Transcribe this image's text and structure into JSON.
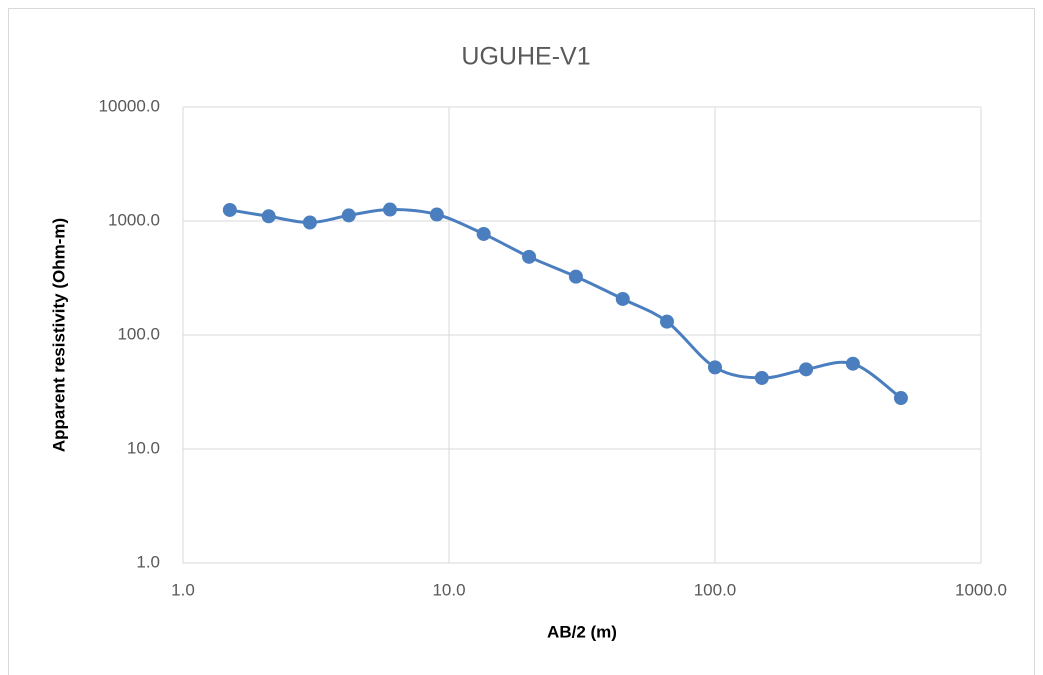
{
  "chart_data": {
    "type": "line",
    "title": "UGUHE-V1",
    "x_label": "AB/2 (m)",
    "y_label": "Apparent resistivity (Ohm-m)",
    "x": [
      1.5,
      2.1,
      3,
      4.2,
      6,
      9,
      13.5,
      20,
      30,
      45,
      66,
      100,
      150,
      220,
      330,
      500
    ],
    "series": [
      {
        "name": "UGUHE-V1",
        "color": "#4a7ebf",
        "values": [
          1250,
          1100,
          970,
          1120,
          1260,
          1140,
          770,
          485,
          325,
          207,
          131,
          52,
          42,
          50,
          56,
          28
        ]
      }
    ],
    "xscale": "log",
    "yscale": "log",
    "smooth": true,
    "grid": true,
    "xlim": [
      1,
      1000
    ],
    "xticks": [
      {
        "value": 1,
        "label": "1.0"
      },
      {
        "value": 10,
        "label": "10.0"
      },
      {
        "value": 100,
        "label": "100.0"
      },
      {
        "value": 1000,
        "label": "1000.0"
      }
    ],
    "ylim": [
      1,
      10000
    ],
    "yticks": [
      {
        "value": 1,
        "label": "1.0"
      },
      {
        "value": 10,
        "label": "10.0"
      },
      {
        "value": 100,
        "label": "100.0"
      },
      {
        "value": 1000,
        "label": "1000.0"
      },
      {
        "value": 10000,
        "label": "10000.0"
      }
    ]
  }
}
